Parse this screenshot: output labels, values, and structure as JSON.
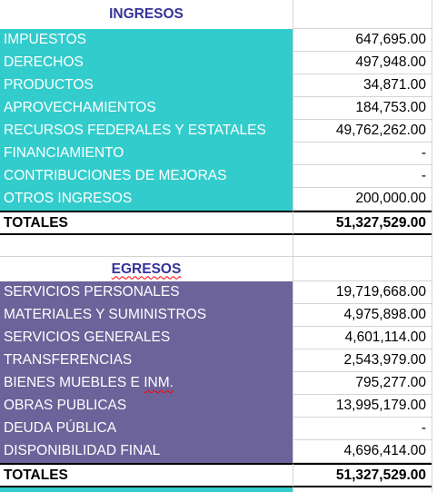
{
  "ingresos": {
    "header": "INGRESOS",
    "rows": [
      {
        "label": "IMPUESTOS",
        "value": "647,695.00"
      },
      {
        "label": "DERECHOS",
        "value": "497,948.00"
      },
      {
        "label": "PRODUCTOS",
        "value": "34,871.00"
      },
      {
        "label": "APROVECHAMIENTOS",
        "value": "184,753.00"
      },
      {
        "label": "RECURSOS FEDERALES Y ESTATALES",
        "value": "49,762,262.00"
      },
      {
        "label": "FINANCIAMIENTO",
        "value": "-"
      },
      {
        "label": "CONTRIBUCIONES DE MEJORAS",
        "value": "-"
      },
      {
        "label": "OTROS INGRESOS",
        "value": "200,000.00"
      }
    ],
    "total_label": "TOTALES",
    "total_value": "51,327,529.00"
  },
  "egresos": {
    "header": "EGRESOS",
    "rows": [
      {
        "label": "SERVICIOS PERSONALES",
        "value": "19,719,668.00"
      },
      {
        "label": "MATERIALES Y SUMINISTROS",
        "value": "4,975,898.00"
      },
      {
        "label": "SERVICIOS GENERALES",
        "value": "4,601,114.00"
      },
      {
        "label": "TRANSFERENCIAS",
        "value": "2,543,979.00"
      },
      {
        "label_main": "BIENES MUEBLES E ",
        "label_flagged": "INM.",
        "value": "795,277.00"
      },
      {
        "label": "OBRAS PUBLICAS",
        "value": "13,995,179.00"
      },
      {
        "label": "DEUDA PÚBLICA",
        "value": "-"
      },
      {
        "label": "DISPONIBILIDAD FINAL",
        "value": "4,696,414.00"
      }
    ],
    "total_label": "TOTALES",
    "total_value": "51,327,529.00"
  },
  "colors": {
    "ingresos_fill": "#33cccc",
    "egresos_fill": "#6b6399",
    "header_text": "#333399",
    "spellcheck": "#ff0000"
  }
}
